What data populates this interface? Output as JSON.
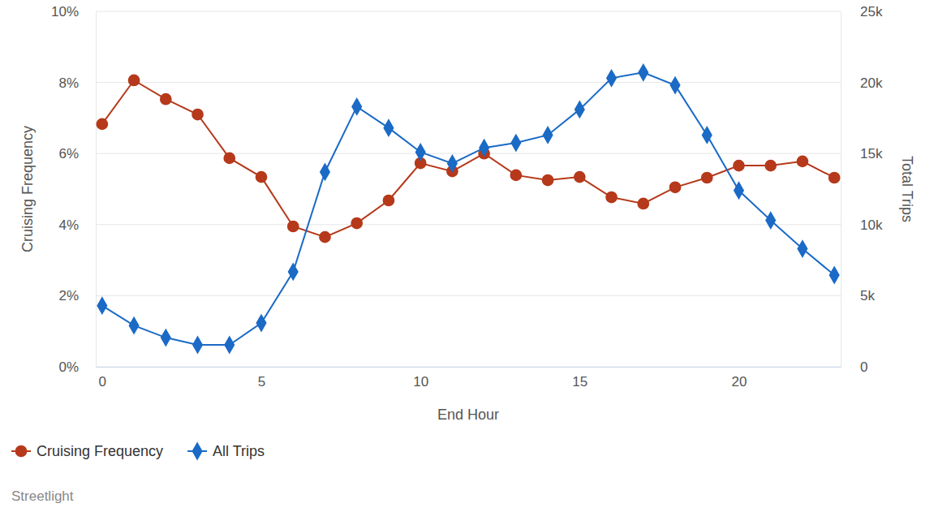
{
  "chart_data": {
    "type": "line",
    "x_label": "End Hour",
    "y_label": "Cruising Frequency",
    "y2_label": "Total Trips",
    "annotations": [
      "Streetlight"
    ],
    "x": [
      0,
      1,
      2,
      3,
      4,
      5,
      6,
      7,
      8,
      9,
      10,
      11,
      12,
      13,
      14,
      15,
      16,
      17,
      18,
      19,
      20,
      21,
      22,
      23
    ],
    "xlim": [
      -0.2,
      23.2
    ],
    "xticks": [
      0,
      5,
      10,
      15,
      20
    ],
    "ylim": [
      0,
      10
    ],
    "yticks": [
      {
        "value": 0,
        "label": "0%"
      },
      {
        "value": 2,
        "label": "2%"
      },
      {
        "value": 4,
        "label": "4%"
      },
      {
        "value": 6,
        "label": "6%"
      },
      {
        "value": 8,
        "label": "8%"
      },
      {
        "value": 10,
        "label": "10%"
      }
    ],
    "y2lim": [
      0,
      25000
    ],
    "y2ticks": [
      0,
      {
        "value": 5000,
        "label": "5k"
      },
      {
        "value": 10000,
        "label": "10k"
      },
      {
        "value": 15000,
        "label": "15k"
      },
      {
        "value": 20000,
        "label": "20k"
      },
      {
        "value": 25000,
        "label": "25k"
      }
    ],
    "grid": true,
    "legend": "bottom",
    "series": [
      {
        "name": "Cruising Frequency",
        "color": "#b5391a",
        "marker": "circle",
        "line_style": "solid",
        "values": [
          6.83,
          8.06,
          7.53,
          7.1,
          5.87,
          5.34,
          3.95,
          3.65,
          4.04,
          4.68,
          5.73,
          5.5,
          6.0,
          5.39,
          5.25,
          5.34,
          4.77,
          4.59,
          5.05,
          5.32,
          5.66,
          5.66,
          5.78,
          5.32
        ]
      },
      {
        "name": "All Trips",
        "color": "#1a6ac6",
        "marker": "diamond",
        "line_style": "solid",
        "axis": "y2",
        "values": [
          4300,
          2900,
          2050,
          1540,
          1540,
          3080,
          6680,
          13700,
          18300,
          16800,
          15100,
          14300,
          15400,
          15750,
          16300,
          18100,
          20300,
          20700,
          19800,
          16300,
          12400,
          10300,
          8300,
          6450
        ]
      }
    ]
  }
}
